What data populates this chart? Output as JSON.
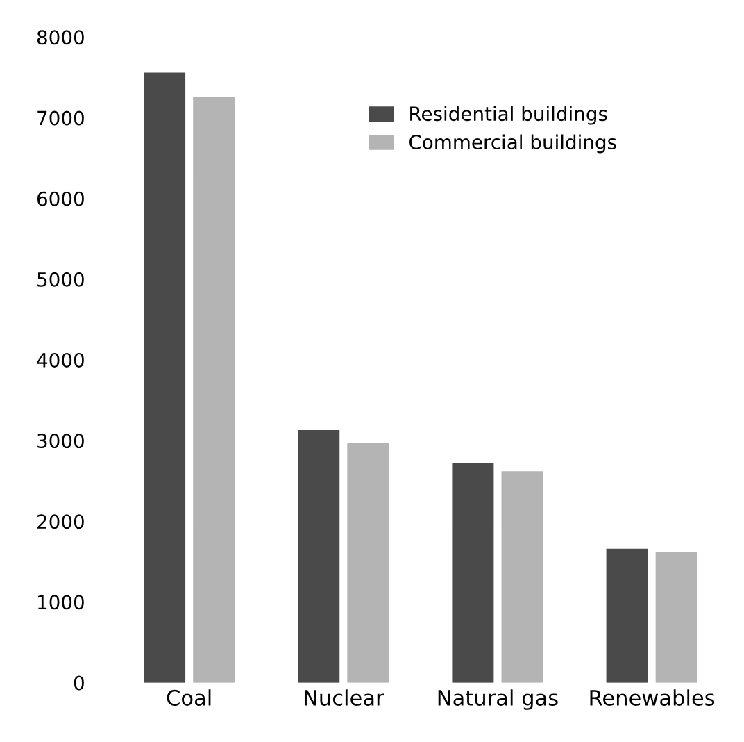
{
  "chart_data": {
    "type": "bar",
    "categories": [
      "Coal",
      "Nuclear",
      "Natural gas",
      "Renewables"
    ],
    "series": [
      {
        "name": "Residential buildings",
        "color": "#4a4a4a",
        "values": [
          7550,
          3120,
          2710,
          1650
        ]
      },
      {
        "name": "Commercial buildings",
        "color": "#b4b4b4",
        "values": [
          7250,
          2960,
          2610,
          1610
        ]
      }
    ],
    "ylim": [
      0,
      8000
    ],
    "yticks": [
      0,
      1000,
      2000,
      3000,
      4000,
      5000,
      6000,
      7000,
      8000
    ],
    "grid": false,
    "legend": "top"
  }
}
